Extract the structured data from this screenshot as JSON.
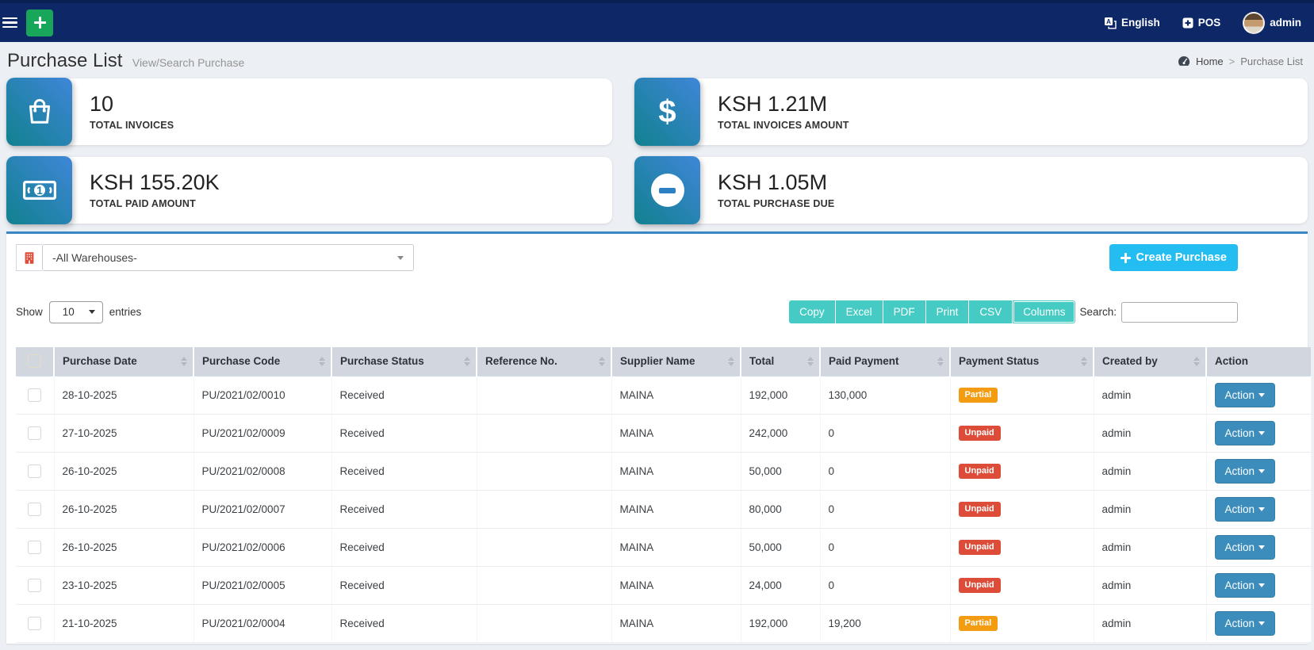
{
  "navbar": {
    "language_label": "English",
    "pos_label": "POS",
    "user_label": "admin"
  },
  "page_header": {
    "title": "Purchase List",
    "subtitle": "View/Search Purchase",
    "breadcrumb": {
      "home": "Home",
      "separator": ">",
      "current": "Purchase List"
    }
  },
  "stats": [
    {
      "value": "10",
      "label": "TOTAL INVOICES",
      "icon": "shopping-bag-icon"
    },
    {
      "value": "KSH 1.21M",
      "label": "TOTAL INVOICES AMOUNT",
      "icon": "dollar-icon"
    },
    {
      "value": "KSH 155.20K",
      "label": "TOTAL PAID AMOUNT",
      "icon": "money-bill-icon"
    },
    {
      "value": "KSH 1.05M",
      "label": "TOTAL PURCHASE DUE",
      "icon": "minus-circle-icon"
    }
  ],
  "filters": {
    "warehouse_selected": "-All Warehouses-"
  },
  "actions": {
    "create_purchase_label": "Create Purchase"
  },
  "datatable": {
    "show_label": "Show",
    "page_length": "10",
    "entries_label": "entries",
    "export_buttons": [
      "Copy",
      "Excel",
      "PDF",
      "Print",
      "CSV",
      "Columns"
    ],
    "search_label": "Search:",
    "search_value": "",
    "columns": [
      "Purchase Date",
      "Purchase Code",
      "Purchase Status",
      "Reference No.",
      "Supplier Name",
      "Total",
      "Paid Payment",
      "Payment Status",
      "Created by",
      "Action"
    ],
    "action_button_label": "Action",
    "rows": [
      {
        "date": "28-10-2025",
        "code": "PU/2021/02/0010",
        "status": "Received",
        "reference": "",
        "supplier": "MAINA",
        "total": "192,000",
        "paid": "130,000",
        "payment_status": "Partial",
        "created_by": "admin"
      },
      {
        "date": "27-10-2025",
        "code": "PU/2021/02/0009",
        "status": "Received",
        "reference": "",
        "supplier": "MAINA",
        "total": "242,000",
        "paid": "0",
        "payment_status": "Unpaid",
        "created_by": "admin"
      },
      {
        "date": "26-10-2025",
        "code": "PU/2021/02/0008",
        "status": "Received",
        "reference": "",
        "supplier": "MAINA",
        "total": "50,000",
        "paid": "0",
        "payment_status": "Unpaid",
        "created_by": "admin"
      },
      {
        "date": "26-10-2025",
        "code": "PU/2021/02/0007",
        "status": "Received",
        "reference": "",
        "supplier": "MAINA",
        "total": "80,000",
        "paid": "0",
        "payment_status": "Unpaid",
        "created_by": "admin"
      },
      {
        "date": "26-10-2025",
        "code": "PU/2021/02/0006",
        "status": "Received",
        "reference": "",
        "supplier": "MAINA",
        "total": "50,000",
        "paid": "0",
        "payment_status": "Unpaid",
        "created_by": "admin"
      },
      {
        "date": "23-10-2025",
        "code": "PU/2021/02/0005",
        "status": "Received",
        "reference": "",
        "supplier": "MAINA",
        "total": "24,000",
        "paid": "0",
        "payment_status": "Unpaid",
        "created_by": "admin"
      },
      {
        "date": "21-10-2025",
        "code": "PU/2021/02/0004",
        "status": "Received",
        "reference": "",
        "supplier": "MAINA",
        "total": "192,000",
        "paid": "19,200",
        "payment_status": "Partial",
        "created_by": "admin"
      }
    ]
  },
  "colors": {
    "navbar_bg": "#0d2767",
    "add_button_green": "#18a65a",
    "create_button_cyan": "#23bdf1",
    "export_button_teal": "#45cbc4",
    "action_button_blue": "#3c8dbc",
    "badge_partial": "#f39c12",
    "badge_unpaid": "#dd4b39",
    "warehouse_icon_red": "#dd4b39",
    "stat_icon_gradient": [
      "#11818f",
      "#3f86d8"
    ],
    "table_header_bg": "#d2d6de"
  }
}
